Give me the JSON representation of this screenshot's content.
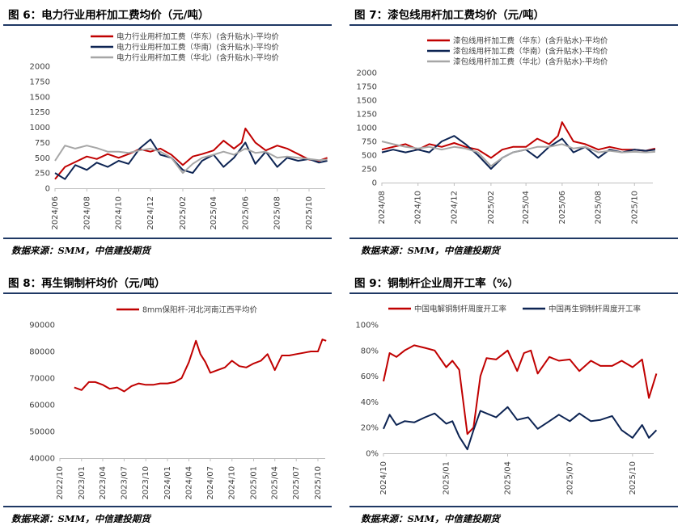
{
  "colors": {
    "red": "#c00000",
    "navy": "#0d2453",
    "gray": "#a6a6a6",
    "rule": "#1f3864"
  },
  "panels": [
    {
      "title": "图 6：电力行业用杆加工费均价（元/吨）",
      "source": "数据来源：SMM，中信建投期货"
    },
    {
      "title": "图 7：漆包线用杆加工费均价（元/吨）",
      "source": "数据来源：SMM，中信建投期货"
    },
    {
      "title": "图 8：再生铜制杆均价（元/吨）",
      "source": "数据来源：SMM，中信建投期货"
    },
    {
      "title": "图 9：铜制杆企业周开工率（%）",
      "source": "数据来源：SMM，中信建投期货"
    }
  ],
  "chart_data": [
    {
      "type": "line",
      "title": "图 6：电力行业用杆加工费均价（元/吨）",
      "x_ticks": [
        "2024/06",
        "2024/08",
        "2024/10",
        "2024/12",
        "2025/02",
        "2025/04",
        "2025/06",
        "2025/08",
        "2025/10"
      ],
      "x_range": [
        "2024-06",
        "2025-11"
      ],
      "ylim": [
        0,
        2000
      ],
      "y_ticks": [
        0,
        250,
        500,
        750,
        1000,
        1250,
        1500,
        1750,
        2000
      ],
      "legend": "top",
      "grid": false,
      "series": [
        {
          "name": "电力行业用杆加工费（华东）(含升贴水)-平均价",
          "color": "#c00000",
          "x": [
            "2024-06-01",
            "2024-06-20",
            "2024-07-10",
            "2024-08-01",
            "2024-08-20",
            "2024-09-10",
            "2024-10-01",
            "2024-10-20",
            "2024-11-10",
            "2024-12-01",
            "2024-12-20",
            "2025-01-10",
            "2025-02-01",
            "2025-02-20",
            "2025-03-10",
            "2025-04-01",
            "2025-04-20",
            "2025-05-10",
            "2025-05-25",
            "2025-06-01",
            "2025-06-20",
            "2025-07-10",
            "2025-08-01",
            "2025-08-20",
            "2025-09-10",
            "2025-10-01",
            "2025-10-20",
            "2025-11-05"
          ],
          "values": [
            150,
            350,
            430,
            520,
            480,
            560,
            500,
            560,
            640,
            600,
            650,
            550,
            380,
            520,
            560,
            620,
            780,
            650,
            750,
            980,
            750,
            620,
            700,
            650,
            560,
            470,
            450,
            500
          ]
        },
        {
          "name": "电力行业用杆加工费（华南）(含升贴水)-平均价",
          "color": "#0d2453",
          "x": [
            "2024-06-01",
            "2024-06-20",
            "2024-07-10",
            "2024-08-01",
            "2024-08-20",
            "2024-09-10",
            "2024-10-01",
            "2024-10-20",
            "2024-11-10",
            "2024-12-01",
            "2024-12-20",
            "2025-01-10",
            "2025-02-01",
            "2025-02-20",
            "2025-03-10",
            "2025-04-01",
            "2025-04-20",
            "2025-05-10",
            "2025-06-01",
            "2025-06-20",
            "2025-07-10",
            "2025-08-01",
            "2025-08-20",
            "2025-09-10",
            "2025-10-01",
            "2025-10-20",
            "2025-11-05"
          ],
          "values": [
            250,
            150,
            380,
            300,
            420,
            350,
            450,
            400,
            650,
            800,
            550,
            500,
            300,
            250,
            450,
            550,
            350,
            500,
            750,
            400,
            600,
            350,
            500,
            450,
            480,
            420,
            450
          ]
        },
        {
          "name": "电力行业用杆加工费（华北）(含升贴水)-平均价",
          "color": "#a6a6a6",
          "x": [
            "2024-06-01",
            "2024-06-20",
            "2024-07-10",
            "2024-08-01",
            "2024-08-20",
            "2024-09-10",
            "2024-10-01",
            "2024-10-20",
            "2024-11-10",
            "2024-12-01",
            "2024-12-20",
            "2025-01-10",
            "2025-02-01",
            "2025-02-20",
            "2025-03-10",
            "2025-04-01",
            "2025-04-20",
            "2025-05-10",
            "2025-06-01",
            "2025-06-20",
            "2025-07-10",
            "2025-08-01",
            "2025-08-20",
            "2025-09-10",
            "2025-10-01",
            "2025-10-20",
            "2025-11-05"
          ],
          "values": [
            450,
            700,
            650,
            700,
            660,
            600,
            600,
            580,
            620,
            650,
            600,
            500,
            250,
            400,
            500,
            550,
            600,
            550,
            650,
            580,
            600,
            500,
            520,
            500,
            480,
            460,
            470
          ]
        }
      ]
    },
    {
      "type": "line",
      "title": "图 7：漆包线用杆加工费均价（元/吨）",
      "x_ticks": [
        "2024/08",
        "2024/10",
        "2024/12",
        "2025/02",
        "2025/04",
        "2025/06",
        "2025/08",
        "2025/10"
      ],
      "x_range": [
        "2024-08",
        "2025-11"
      ],
      "ylim": [
        0,
        2000
      ],
      "y_ticks": [
        0,
        250,
        500,
        750,
        1000,
        1250,
        1500,
        1750,
        2000
      ],
      "legend": "top",
      "grid": false,
      "series": [
        {
          "name": "漆包线用杆加工费（华东）(含升贴水)-平均价",
          "color": "#c00000",
          "x": [
            "2024-08-01",
            "2024-08-20",
            "2024-09-10",
            "2024-10-01",
            "2024-10-20",
            "2024-11-10",
            "2024-12-01",
            "2024-12-20",
            "2025-01-10",
            "2025-02-01",
            "2025-02-20",
            "2025-03-10",
            "2025-04-01",
            "2025-04-20",
            "2025-05-10",
            "2025-05-25",
            "2025-06-01",
            "2025-06-20",
            "2025-07-10",
            "2025-08-01",
            "2025-08-20",
            "2025-09-10",
            "2025-10-01",
            "2025-10-20",
            "2025-11-05"
          ],
          "values": [
            600,
            650,
            700,
            600,
            700,
            650,
            720,
            650,
            600,
            450,
            600,
            650,
            650,
            800,
            700,
            850,
            1100,
            750,
            700,
            600,
            650,
            600,
            600,
            580,
            620
          ]
        },
        {
          "name": "漆包线用杆加工费（华南）(含升贴水)-平均价",
          "color": "#0d2453",
          "x": [
            "2024-08-01",
            "2024-08-20",
            "2024-09-10",
            "2024-10-01",
            "2024-10-20",
            "2024-11-10",
            "2024-12-01",
            "2024-12-20",
            "2025-01-10",
            "2025-02-01",
            "2025-02-20",
            "2025-03-10",
            "2025-04-01",
            "2025-04-20",
            "2025-05-10",
            "2025-06-01",
            "2025-06-20",
            "2025-07-10",
            "2025-08-01",
            "2025-08-20",
            "2025-09-10",
            "2025-10-01",
            "2025-10-20",
            "2025-11-05"
          ],
          "values": [
            550,
            600,
            550,
            600,
            550,
            750,
            850,
            700,
            500,
            250,
            450,
            550,
            600,
            450,
            650,
            800,
            550,
            650,
            450,
            600,
            550,
            600,
            580,
            600
          ]
        },
        {
          "name": "漆包线用杆加工费（华北）(含升贴水)-平均价",
          "color": "#a6a6a6",
          "x": [
            "2024-08-01",
            "2024-08-20",
            "2024-09-10",
            "2024-10-01",
            "2024-10-20",
            "2024-11-10",
            "2024-12-01",
            "2024-12-20",
            "2025-01-10",
            "2025-02-01",
            "2025-02-20",
            "2025-03-10",
            "2025-04-01",
            "2025-04-20",
            "2025-05-10",
            "2025-06-01",
            "2025-06-20",
            "2025-07-10",
            "2025-08-01",
            "2025-08-20",
            "2025-09-10",
            "2025-10-01",
            "2025-10-20",
            "2025-11-05"
          ],
          "values": [
            750,
            700,
            650,
            620,
            650,
            600,
            650,
            620,
            550,
            300,
            450,
            550,
            600,
            650,
            650,
            700,
            620,
            650,
            550,
            580,
            550,
            560,
            550,
            560
          ]
        }
      ]
    },
    {
      "type": "line",
      "title": "图 8：再生铜制杆均价（元/吨）",
      "x_ticks": [
        "2022/10",
        "2023/01",
        "2023/04",
        "2023/07",
        "2023/10",
        "2024/01",
        "2024/04",
        "2024/07",
        "2024/10",
        "2025/01",
        "2025/04",
        "2025/07",
        "2025/10"
      ],
      "x_range": [
        "2022-10",
        "2025-11"
      ],
      "ylim": [
        40000,
        90000
      ],
      "y_ticks": [
        40000,
        50000,
        60000,
        70000,
        80000,
        90000
      ],
      "legend": "top",
      "grid": false,
      "series": [
        {
          "name": "8mm保阳杆-河北河南江西平均价",
          "color": "#c00000",
          "x": [
            "2022-12-01",
            "2023-01-01",
            "2023-02-01",
            "2023-03-01",
            "2023-04-01",
            "2023-05-01",
            "2023-06-01",
            "2023-07-01",
            "2023-08-01",
            "2023-09-01",
            "2023-10-01",
            "2023-11-01",
            "2023-12-01",
            "2024-01-01",
            "2024-02-01",
            "2024-03-01",
            "2024-04-01",
            "2024-05-01",
            "2024-05-20",
            "2024-06-10",
            "2024-07-01",
            "2024-08-01",
            "2024-09-01",
            "2024-10-01",
            "2024-11-01",
            "2024-12-01",
            "2025-01-01",
            "2025-02-01",
            "2025-03-01",
            "2025-04-01",
            "2025-05-01",
            "2025-06-01",
            "2025-07-01",
            "2025-08-01",
            "2025-09-01",
            "2025-10-01",
            "2025-10-20",
            "2025-11-05"
          ],
          "values": [
            66500,
            65500,
            68500,
            68500,
            67500,
            66000,
            66500,
            65000,
            67000,
            68000,
            67500,
            67500,
            68000,
            68000,
            68500,
            70000,
            76000,
            84000,
            79000,
            76000,
            72000,
            73000,
            74000,
            76500,
            74500,
            74000,
            75500,
            76500,
            79000,
            73000,
            78500,
            78500,
            79000,
            79500,
            80000,
            80000,
            84500,
            84000
          ]
        }
      ]
    },
    {
      "type": "line",
      "title": "图 9：铜制杆企业周开工率（%）",
      "x_ticks": [
        "2024/10",
        "2025/01",
        "2025/04",
        "2025/07",
        "2025/10"
      ],
      "x_range": [
        "2024-10",
        "2025-11"
      ],
      "ylim": [
        0,
        100
      ],
      "y_ticks": [
        "0%",
        "20%",
        "40%",
        "60%",
        "80%",
        "100%"
      ],
      "legend": "top",
      "grid": false,
      "series": [
        {
          "name": "中国电解铜制杆周度开工率",
          "color": "#c00000",
          "x": [
            "2024-10-01",
            "2024-10-10",
            "2024-10-20",
            "2024-11-01",
            "2024-11-15",
            "2024-12-01",
            "2024-12-15",
            "2025-01-01",
            "2025-01-10",
            "2025-01-20",
            "2025-02-01",
            "2025-02-10",
            "2025-02-20",
            "2025-03-01",
            "2025-03-15",
            "2025-04-01",
            "2025-04-15",
            "2025-04-25",
            "2025-05-05",
            "2025-05-15",
            "2025-06-01",
            "2025-06-15",
            "2025-07-01",
            "2025-07-15",
            "2025-08-01",
            "2025-08-15",
            "2025-09-01",
            "2025-09-15",
            "2025-10-01",
            "2025-10-15",
            "2025-10-25",
            "2025-11-05"
          ],
          "values": [
            56,
            78,
            75,
            80,
            84,
            82,
            80,
            67,
            72,
            65,
            15,
            20,
            60,
            74,
            73,
            80,
            64,
            78,
            80,
            62,
            75,
            72,
            73,
            64,
            72,
            68,
            68,
            72,
            67,
            73,
            43,
            62
          ]
        },
        {
          "name": "中国再生铜制杆周度开工率",
          "color": "#0d2453",
          "x": [
            "2024-10-01",
            "2024-10-10",
            "2024-10-20",
            "2024-11-01",
            "2024-11-15",
            "2024-12-01",
            "2024-12-15",
            "2025-01-01",
            "2025-01-10",
            "2025-01-20",
            "2025-02-01",
            "2025-02-10",
            "2025-02-20",
            "2025-03-01",
            "2025-03-15",
            "2025-04-01",
            "2025-04-15",
            "2025-05-01",
            "2025-05-15",
            "2025-06-01",
            "2025-06-15",
            "2025-07-01",
            "2025-07-15",
            "2025-08-01",
            "2025-08-15",
            "2025-09-01",
            "2025-09-15",
            "2025-10-01",
            "2025-10-15",
            "2025-10-25",
            "2025-11-05"
          ],
          "values": [
            19,
            30,
            22,
            25,
            24,
            28,
            31,
            23,
            25,
            13,
            3,
            18,
            33,
            31,
            28,
            36,
            26,
            28,
            19,
            25,
            30,
            25,
            31,
            25,
            26,
            29,
            18,
            12,
            22,
            12,
            18
          ]
        }
      ]
    }
  ]
}
